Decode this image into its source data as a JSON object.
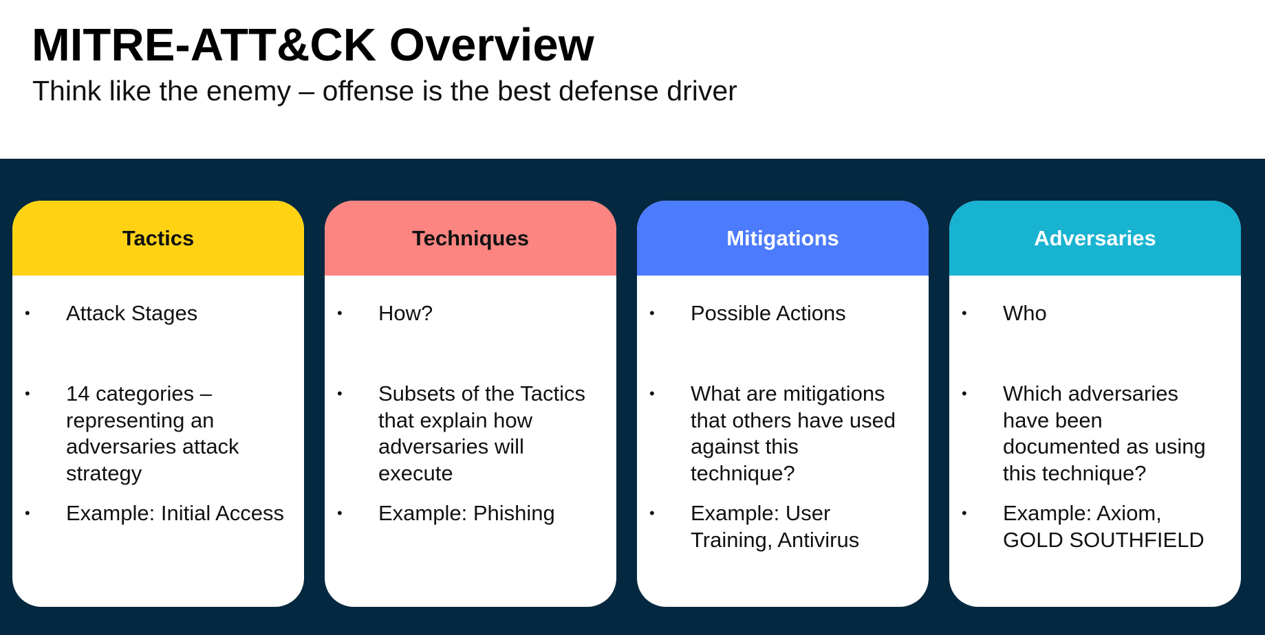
{
  "slide": {
    "title": "MITRE-ATT&CK Overview",
    "subtitle": "Think like the enemy – offense is the best defense driver"
  },
  "colors": {
    "band": "#03283f",
    "tactics": "#ffd313",
    "techniques": "#fd8581",
    "mitigations": "#4d7bfe",
    "adversaries": "#18b3d1"
  },
  "cards": [
    {
      "header": "Tactics",
      "bullets": [
        "Attack Stages",
        "14 categories –\nrepresenting an\nadversaries attack\nstrategy",
        "Example: Initial Access"
      ]
    },
    {
      "header": "Techniques",
      "bullets": [
        "How?",
        "Subsets of the Tactics\nthat explain how\nadversaries will\nexecute",
        "Example: Phishing"
      ]
    },
    {
      "header": "Mitigations",
      "bullets": [
        "Possible Actions",
        "What are mitigations\nthat others have used\nagainst this\ntechnique?",
        "Example: User\nTraining, Antivirus"
      ]
    },
    {
      "header": "Adversaries",
      "bullets": [
        "Who",
        "Which adversaries\nhave been\ndocumented as using\nthis technique?",
        "Example: Axiom,\nGOLD SOUTHFIELD"
      ]
    }
  ]
}
